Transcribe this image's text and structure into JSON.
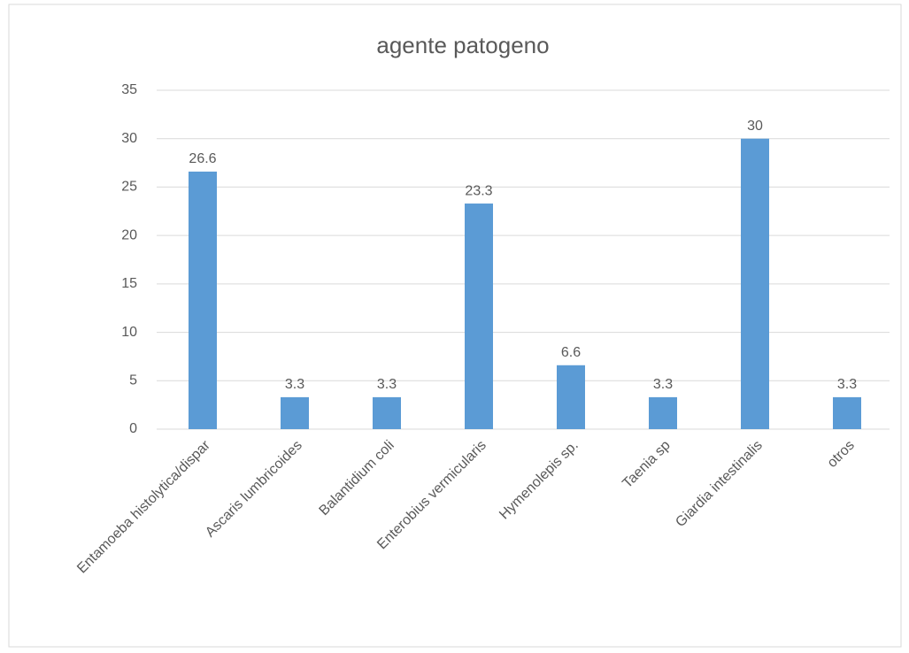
{
  "chart_data": {
    "type": "bar",
    "title": "agente patogeno",
    "categories": [
      "Entamoeba histolytica/dispar",
      "Ascaris lumbricoides",
      "Balantidium coli",
      "Enterobius vermicularis",
      "Hymenolepis sp.",
      "Taenia sp",
      "Giardia intestinalis",
      "otros"
    ],
    "values": [
      26.6,
      3.3,
      3.3,
      23.3,
      6.6,
      3.3,
      30,
      3.3
    ],
    "color": "#5b9bd5",
    "ylim": [
      0,
      35
    ],
    "yticks": [
      0,
      5,
      10,
      15,
      20,
      25,
      30,
      35
    ],
    "grid": true
  }
}
